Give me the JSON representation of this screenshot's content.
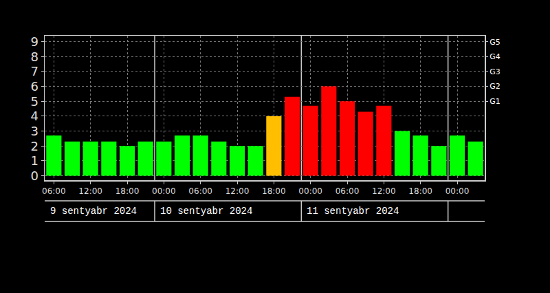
{
  "chart_data": {
    "type": "bar",
    "categories": [
      "06:00",
      null,
      "12:00",
      null,
      "18:00",
      null,
      "00:00",
      null,
      "06:00",
      null,
      "12:00",
      null,
      "18:00",
      null,
      "00:00",
      null,
      "06:00",
      null,
      "12:00",
      null,
      "18:00",
      null,
      "00:00",
      null
    ],
    "values": [
      2.7,
      2.3,
      2.3,
      2.3,
      2.0,
      2.3,
      2.3,
      2.7,
      2.7,
      2.3,
      2.0,
      2.0,
      4.0,
      5.3,
      4.7,
      6.0,
      5.0,
      4.3,
      4.7,
      3.0,
      2.7,
      2.0,
      2.7,
      2.3
    ],
    "colors": [
      "#00ff00",
      "#00ff00",
      "#00ff00",
      "#00ff00",
      "#00ff00",
      "#00ff00",
      "#00ff00",
      "#00ff00",
      "#00ff00",
      "#00ff00",
      "#00ff00",
      "#00ff00",
      "#ffbf00",
      "#ff0000",
      "#ff0000",
      "#ff0000",
      "#ff0000",
      "#ff0000",
      "#ff0000",
      "#00ff00",
      "#00ff00",
      "#00ff00",
      "#00ff00",
      "#00ff00"
    ],
    "ylim": [
      -0.3,
      9.4
    ],
    "yticks": [
      0,
      1,
      2,
      3,
      4,
      5,
      6,
      7,
      8,
      9
    ],
    "y2lim": [
      -0.3,
      9.4
    ],
    "y2ticks": [
      {
        "value": 5,
        "label": "G1"
      },
      {
        "value": 6,
        "label": "G2"
      },
      {
        "value": 7,
        "label": "G3"
      },
      {
        "value": 8,
        "label": "G4"
      },
      {
        "value": 9,
        "label": "G5"
      }
    ],
    "grid": true,
    "dates": [
      "9 sentyabr 2024",
      "10 sentyabr 2024",
      "11 sentyabr 2024"
    ]
  }
}
